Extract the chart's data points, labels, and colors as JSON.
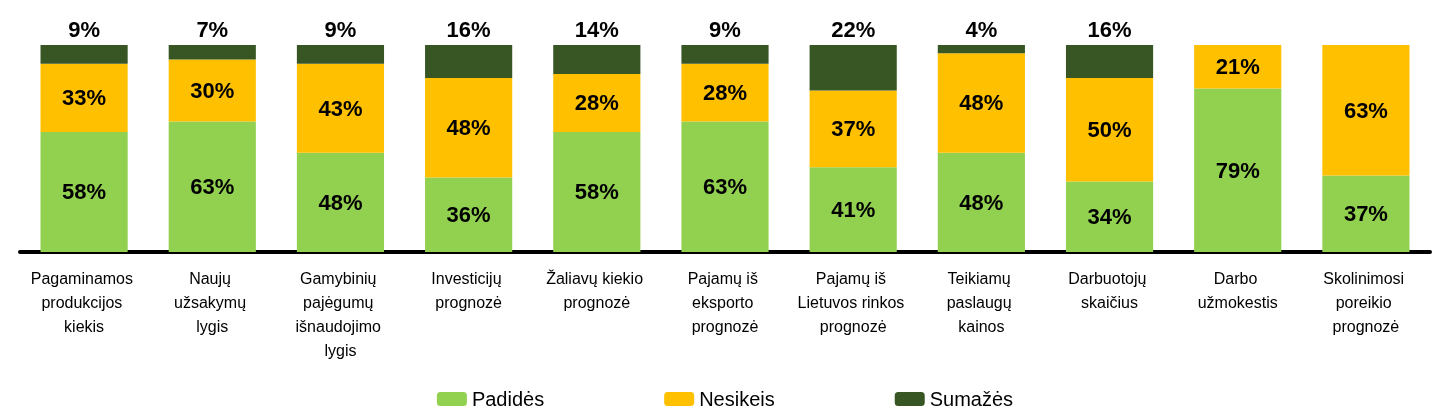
{
  "chart_data": {
    "type": "bar",
    "stacked": true,
    "legend": "bottom",
    "categories": [
      "Pagaminamos produkcijos kiekis",
      "Naujų užsakymų lygis",
      "Gamybinių pajėgumų išnaudojimo lygis",
      "Investicijų prognozė",
      "Žaliavų kiekio prognozė",
      "Pajamų iš eksporto prognozė",
      "Pajamų iš Lietuvos rinkos prognozė",
      "Teikiamų paslaugų kainos",
      "Darbuotojų skaičius",
      "Darbo užmokestis",
      "Skolinimosi poreikio prognozė"
    ],
    "series": [
      {
        "name": "Padidės",
        "color": "#92d050",
        "values": [
          58,
          63,
          48,
          36,
          58,
          63,
          41,
          48,
          34,
          79,
          37
        ],
        "value_labels": [
          "58%",
          "63%",
          "48%",
          "36%",
          "58%",
          "63%",
          "41%",
          "48%",
          "34%",
          "79%",
          "37%"
        ]
      },
      {
        "name": "Nesikeis",
        "color": "#ffc000",
        "values": [
          33,
          30,
          43,
          48,
          28,
          28,
          37,
          48,
          50,
          21,
          63
        ],
        "value_labels": [
          "33%",
          "30%",
          "43%",
          "48%",
          "28%",
          "28%",
          "37%",
          "48%",
          "50%",
          "21%",
          "63%"
        ]
      },
      {
        "name": "Sumažės",
        "color": "#375623",
        "values": [
          9,
          7,
          9,
          16,
          14,
          9,
          22,
          4,
          16,
          null,
          null
        ],
        "value_labels": [
          "9%",
          "7%",
          "9%",
          "16%",
          "14%",
          "9%",
          "22%",
          "4%",
          "16%",
          null,
          null
        ]
      }
    ]
  }
}
